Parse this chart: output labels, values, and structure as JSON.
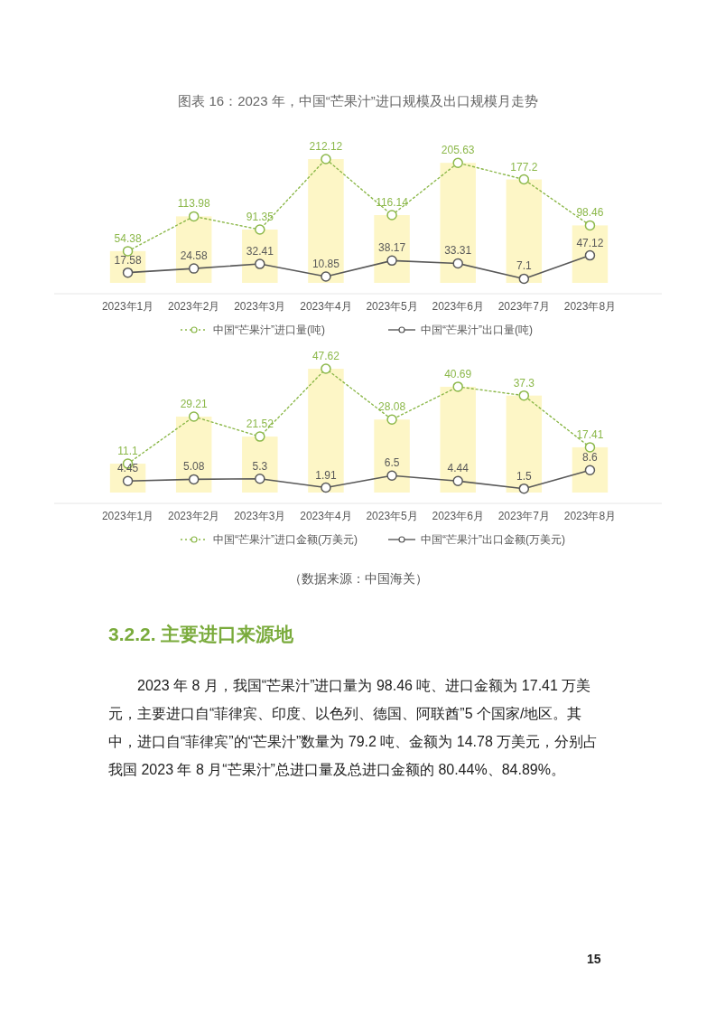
{
  "chart_data": [
    {
      "type": "line",
      "title": "图表 16：2023 年，中国“芒果汁”进口规模及出口规模月走势",
      "categories": [
        "2023年1月",
        "2023年2月",
        "2023年3月",
        "2023年4月",
        "2023年5月",
        "2023年6月",
        "2023年7月",
        "2023年8月"
      ],
      "series": [
        {
          "type": "bar",
          "color": "#fdf6c6",
          "values": [
            54.38,
            113.98,
            91.35,
            212.12,
            116.14,
            205.63,
            177.2,
            98.46
          ],
          "value_labels": [
            null,
            null,
            null,
            null,
            null,
            null,
            null,
            null
          ]
        },
        {
          "name": "中国“芒果汁”进口量(吨)",
          "color": "#8cb84a",
          "line_style": "dotted",
          "values": [
            54.38,
            113.98,
            91.35,
            212.12,
            116.14,
            205.63,
            177.2,
            98.46
          ]
        },
        {
          "name": "中国“芒果汁”出口量(吨)",
          "color": "#595959",
          "line_style": "solid",
          "values": [
            17.58,
            24.58,
            32.41,
            10.85,
            38.17,
            33.31,
            7.1,
            47.12
          ]
        }
      ],
      "data_labels": true,
      "marker": "circle",
      "legend": "bottom",
      "grid": false
    },
    {
      "type": "line",
      "categories": [
        "2023年1月",
        "2023年2月",
        "2023年3月",
        "2023年4月",
        "2023年5月",
        "2023年6月",
        "2023年7月",
        "2023年8月"
      ],
      "series": [
        {
          "type": "bar",
          "color": "#fdf6c6",
          "values": [
            11.1,
            29.21,
            21.52,
            47.62,
            28.08,
            40.69,
            37.3,
            17.41
          ],
          "value_labels": [
            null,
            null,
            null,
            null,
            null,
            null,
            null,
            null
          ]
        },
        {
          "name": "中国“芒果汁”进口金额(万美元)",
          "color": "#8cb84a",
          "line_style": "dotted",
          "values": [
            11.1,
            29.21,
            21.52,
            47.62,
            28.08,
            40.69,
            37.3,
            17.41
          ]
        },
        {
          "name": "中国“芒果汁”出口金额(万美元)",
          "color": "#595959",
          "line_style": "solid",
          "values": [
            4.45,
            5.08,
            5.3,
            1.91,
            6.5,
            4.44,
            1.5,
            8.6
          ]
        }
      ],
      "data_labels": true,
      "marker": "circle",
      "legend": "bottom",
      "grid": false,
      "annotations": [
        "（数据来源：中国海关）",
        "3.2.2. 主要进口来源地",
        "2023 年 8 月，我国“芒果汁”进口量为 98.46 吨、进口金额为 17.41 万美元，主要进口自“菲律宾、印度、以色列、德国、阿联酋”5 个国家/地区。其中，进口自“菲律宾”的“芒果汁”数量为 79.2 吨、金额为 14.78 万美元，分别占我国 2023 年 8 月“芒果汁”总进口量及总进口金额的 80.44%、84.89%。",
        "15"
      ]
    }
  ]
}
